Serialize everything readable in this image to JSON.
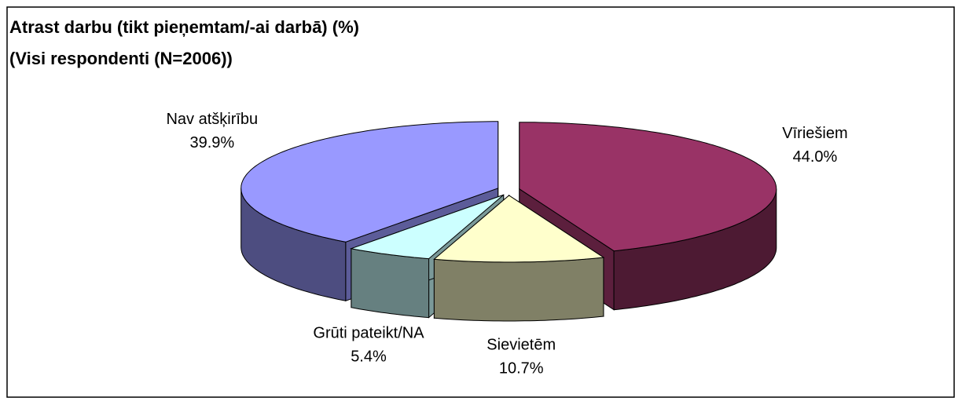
{
  "chart_data": {
    "type": "pie3d",
    "title": "Atrast darbu (tikt pieņemtam/-ai darbā) (%)",
    "subtitle": "(Visi respondenti (N=2006))",
    "categories": [
      "Vīriešiem",
      "Sievietēm",
      "Grūti pateikt/NA",
      "Nav atšķirību"
    ],
    "values": [
      44.0,
      10.7,
      5.4,
      39.9
    ],
    "value_labels": [
      "44.0%",
      "10.7%",
      "5.4%",
      "39.9%"
    ],
    "colors": [
      "#993366",
      "#ffffcc",
      "#ccffff",
      "#9999ff"
    ]
  }
}
